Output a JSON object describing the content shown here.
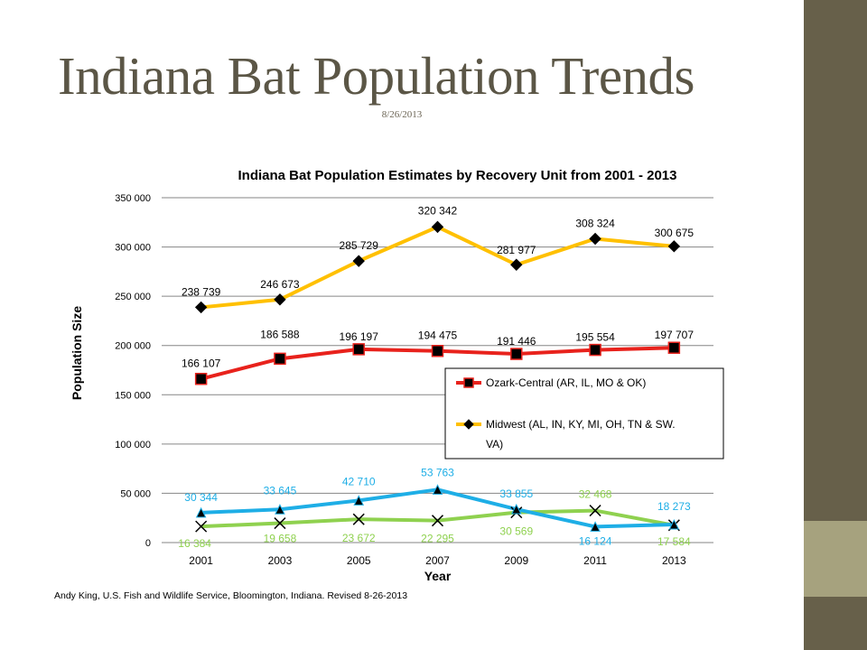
{
  "slide": {
    "title": "Indiana Bat Population Trends",
    "date": "8/26/2013",
    "footer": "Andy King, U.S. Fish and Wildlife Service, Bloomington, Indiana. Revised 8-26-2013"
  },
  "colors": {
    "sidebar": "#67604a",
    "sidebar_accent": "#a6a27e",
    "ozark": "#e8221c",
    "midwest": "#ffc000",
    "blue_series": "#1eaee6",
    "green_series": "#8fd14f"
  },
  "chart_data": {
    "type": "line",
    "title": "Indiana Bat Population Estimates by Recovery Unit from 2001 - 2013",
    "xlabel": "Year",
    "ylabel": "Population Size",
    "categories": [
      "2001",
      "2003",
      "2005",
      "2007",
      "2009",
      "2011",
      "2013"
    ],
    "ylim": [
      0,
      350000
    ],
    "yticks": [
      0,
      50000,
      100000,
      150000,
      200000,
      250000,
      300000,
      350000
    ],
    "ytick_labels": [
      "0",
      "50 000",
      "100 000",
      "150 000",
      "200 000",
      "250 000",
      "300 000",
      "350 000"
    ],
    "grid": true,
    "legend_position": "right",
    "series": [
      {
        "name": "Ozark-Central (AR, IL, MO & OK)",
        "color": "#e8221c",
        "marker": "square",
        "values": [
          166107,
          186588,
          196197,
          194475,
          191446,
          195554,
          197707
        ],
        "labels": [
          "166 107",
          "186 588",
          "196 197",
          "194 475",
          "191 446",
          "195 554",
          "197 707"
        ]
      },
      {
        "name": "Midwest (AL, IN, KY, MI, OH, TN & SW. VA)",
        "color": "#ffc000",
        "marker": "diamond",
        "values": [
          238739,
          246673,
          285729,
          320342,
          281977,
          308324,
          300675
        ],
        "labels": [
          "238 739",
          "246 673",
          "285 729",
          "320 342",
          "281 977",
          "308 324",
          "300 675"
        ]
      },
      {
        "color": "#1eaee6",
        "marker": "triangle",
        "values": [
          30344,
          33645,
          42710,
          53763,
          33855,
          16124,
          18273
        ],
        "labels": [
          "30 344",
          "33 645",
          "42 710",
          "53 763",
          "33 855",
          "16 124",
          "18 273"
        ]
      },
      {
        "color": "#8fd14f",
        "marker": "x",
        "values": [
          16384,
          19658,
          23672,
          22295,
          30569,
          32468,
          17584
        ],
        "labels": [
          "16 384",
          "19 658",
          "23 672",
          "22 295",
          "30 569",
          "32 468",
          "17 584"
        ]
      }
    ]
  }
}
